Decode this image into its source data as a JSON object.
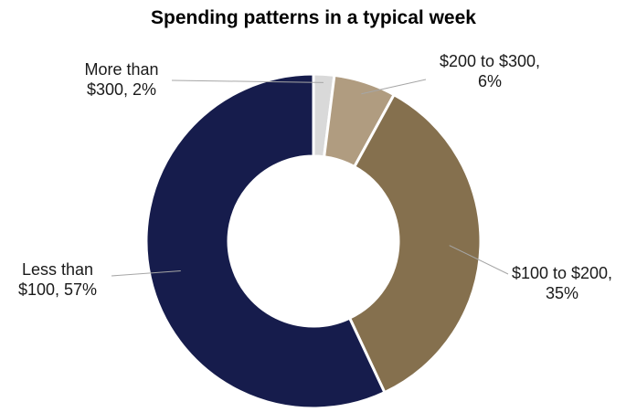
{
  "chart_data": {
    "type": "pie",
    "variant": "donut",
    "title": "Spending patterns in a typical week",
    "slices": [
      {
        "category": "More than $300",
        "value": 2,
        "label_lines": [
          "More than",
          "$300, 2%"
        ],
        "color": "#d9d9d9"
      },
      {
        "category": "$200 to $300",
        "value": 6,
        "label_lines": [
          "$200 to $300,",
          "6%"
        ],
        "color": "#b09c80"
      },
      {
        "category": "$100 to $200",
        "value": 35,
        "label_lines": [
          "$100 to $200,",
          "35%"
        ],
        "color": "#85704e"
      },
      {
        "category": "Less than $100",
        "value": 57,
        "label_lines": [
          "Less than",
          "$100, 57%"
        ],
        "color": "#161c4c"
      }
    ],
    "start_angle": "12 o'clock",
    "direction": "clockwise",
    "legend": "none",
    "labels": "outside with leader lines"
  }
}
